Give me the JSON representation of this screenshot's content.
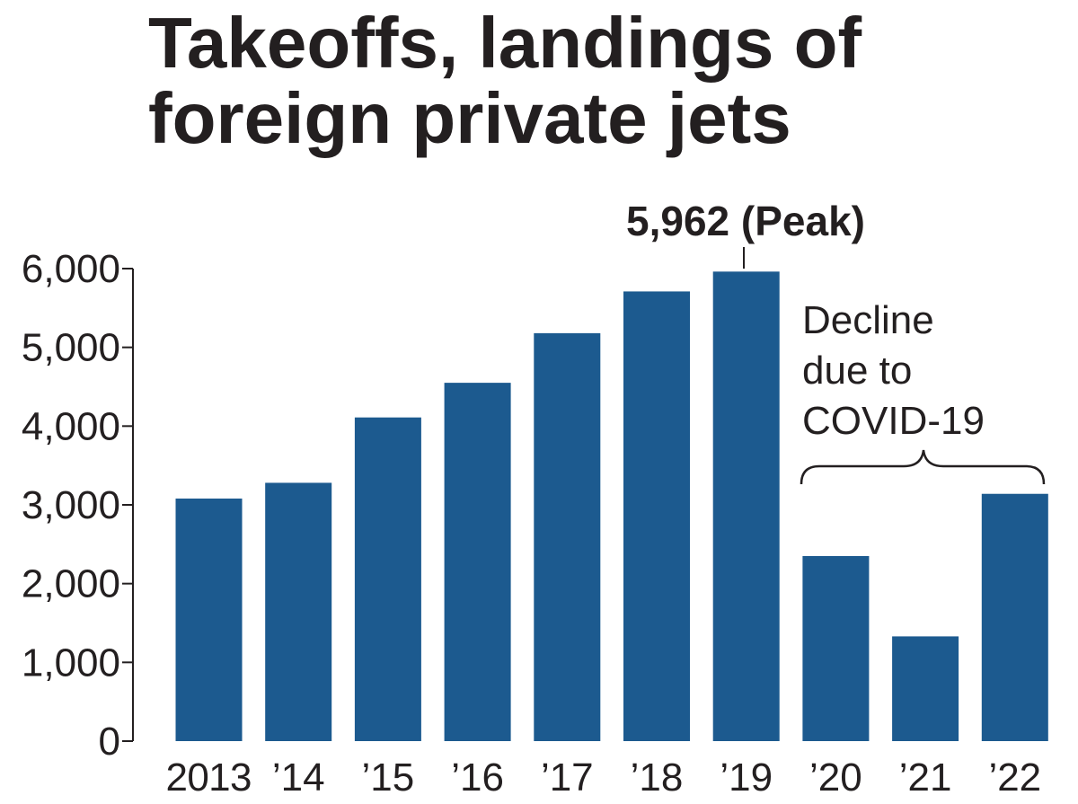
{
  "chart_data": {
    "type": "bar",
    "title_lines": [
      "Takeoffs, landings of",
      "foreign private jets"
    ],
    "categories": [
      "2013",
      "’14",
      "’15",
      "’16",
      "’17",
      "’18",
      "’19",
      "’20",
      "’21",
      "’22"
    ],
    "values": [
      3080,
      3280,
      4110,
      4550,
      5180,
      5710,
      5962,
      2350,
      1330,
      3140
    ],
    "ylim": [
      0,
      6000
    ],
    "yticks": [
      0,
      1000,
      2000,
      3000,
      4000,
      5000,
      6000
    ],
    "ytick_labels": [
      "0",
      "1,000",
      "2,000",
      "3,000",
      "4,000",
      "5,000",
      "6,000"
    ],
    "grid": false,
    "bar_color": "#1c5a8f",
    "annotations": {
      "peak_label": "5,962 (Peak)",
      "peak_category": "’19",
      "decline_lines": [
        "Decline",
        "due to",
        "COVID-19"
      ],
      "decline_categories": [
        "’20",
        "’21",
        "’22"
      ]
    }
  }
}
